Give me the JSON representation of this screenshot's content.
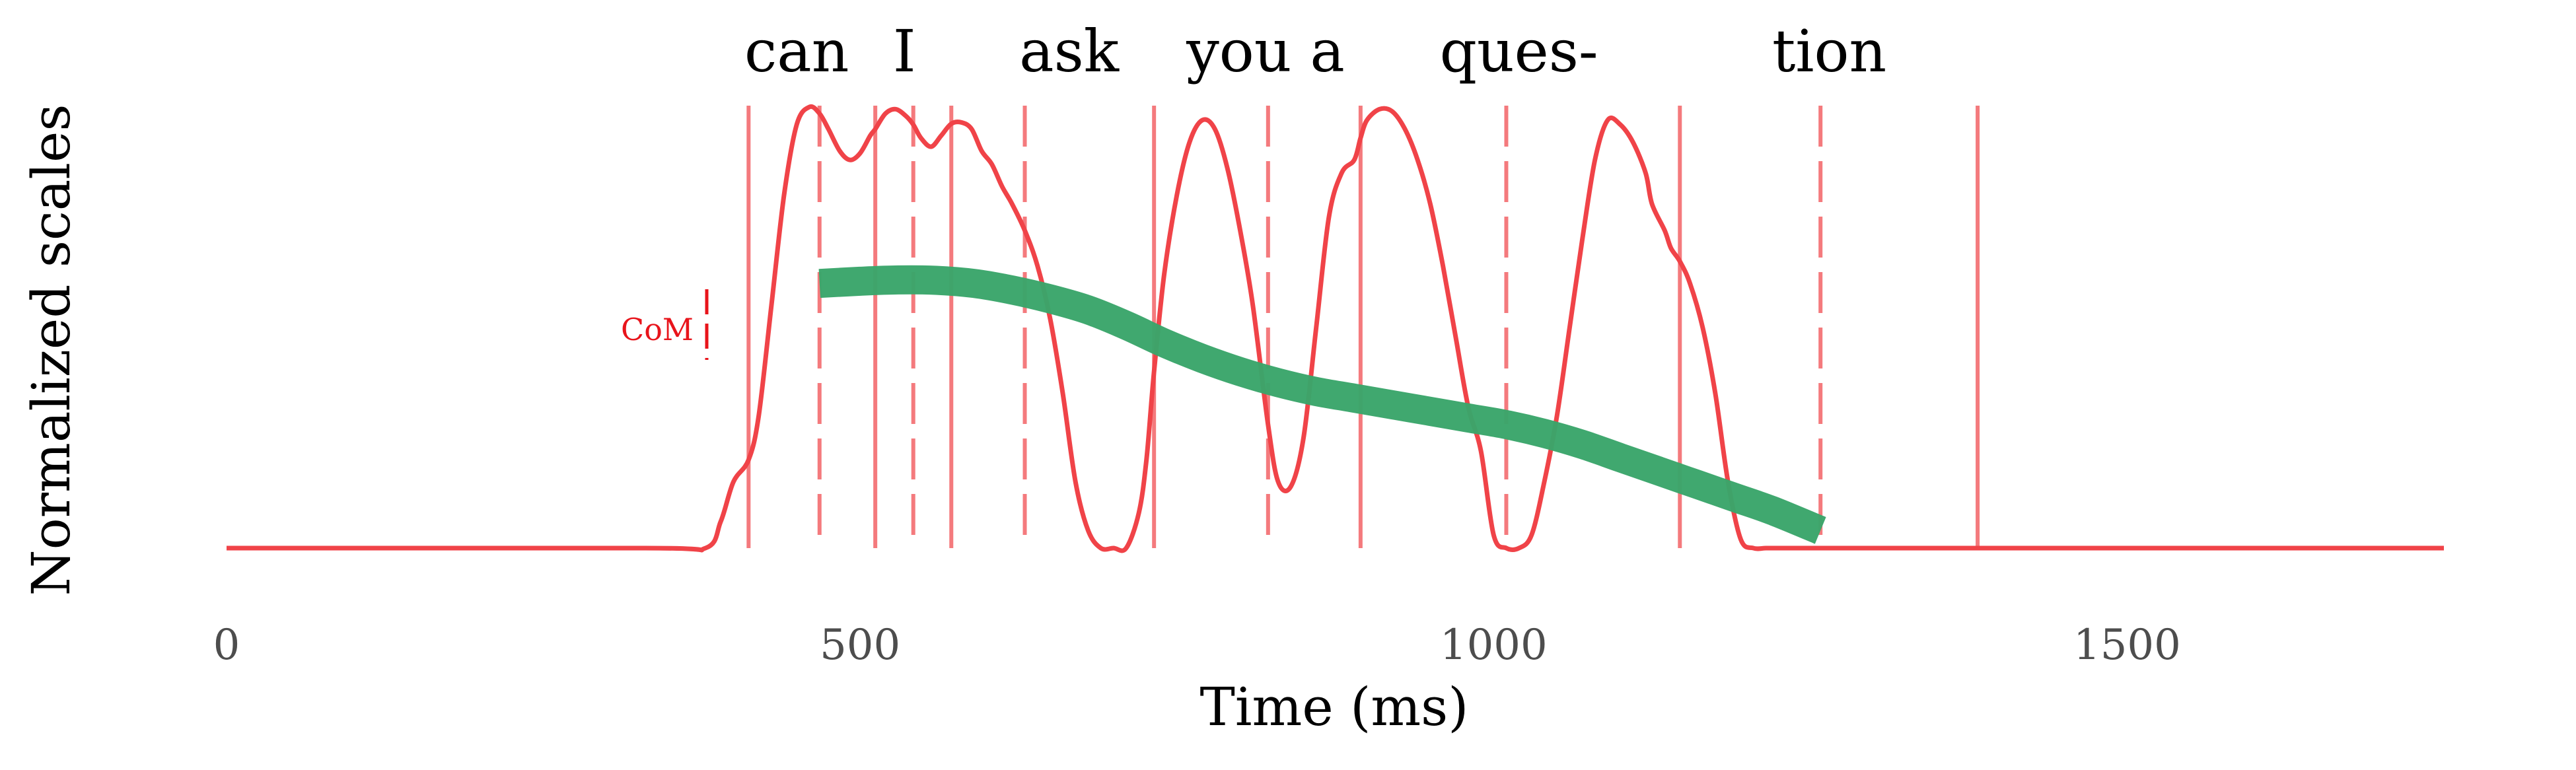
{
  "colors": {
    "envelope": "#f04348",
    "boundary": "#f47a7d",
    "trend": "#3aa56a",
    "com": "#e8141b"
  },
  "chart_data": {
    "type": "line",
    "xlabel": "Time (ms)",
    "ylabel": "Normalized scales",
    "xlim": [
      0,
      1750
    ],
    "x_ticks": [
      0,
      500,
      1000,
      1500
    ],
    "grid": false,
    "legend": "none",
    "words": [
      {
        "label": "can",
        "x": 450
      },
      {
        "label": "I",
        "x": 535
      },
      {
        "label": "ask",
        "x": 665
      },
      {
        "label": "you a",
        "x": 820
      },
      {
        "label": "ques-",
        "x": 1020
      },
      {
        "label": "tion",
        "x": 1265
      }
    ],
    "boundaries_solid": [
      412,
      512,
      572,
      732,
      895,
      1147,
      1382
    ],
    "boundaries_dashed": [
      468,
      542,
      630,
      822,
      1010,
      1258
    ],
    "com_label": "CoM",
    "envelope": {
      "x": [
        0,
        330,
        378,
        390,
        400,
        412,
        420,
        430,
        440,
        450,
        460,
        468,
        475,
        484,
        492,
        500,
        508,
        512,
        520,
        528,
        536,
        542,
        548,
        556,
        564,
        572,
        580,
        588,
        596,
        604,
        612,
        620,
        630,
        640,
        650,
        660,
        670,
        680,
        690,
        700,
        710,
        720,
        726,
        732,
        740,
        750,
        760,
        770,
        780,
        790,
        800,
        810,
        822,
        830,
        840,
        850,
        860,
        870,
        880,
        890,
        895,
        900,
        910,
        920,
        930,
        940,
        950,
        960,
        970,
        980,
        990,
        1000,
        1010,
        1020,
        1030,
        1040,
        1050,
        1060,
        1070,
        1080,
        1090,
        1100,
        1110,
        1120,
        1125,
        1135,
        1140,
        1147,
        1155,
        1165,
        1175,
        1185,
        1195,
        1205,
        1215,
        1225,
        1235,
        1245,
        1258,
        1270,
        1280,
        1290,
        1300,
        1310,
        1320,
        1330,
        1340,
        1350,
        1360,
        1370,
        1375,
        1382,
        1390,
        1750
      ],
      "y": [
        0,
        0,
        0,
        0.06,
        0.15,
        0.2,
        0.3,
        0.55,
        0.8,
        0.96,
        1.0,
        0.985,
        0.95,
        0.9,
        0.88,
        0.895,
        0.935,
        0.95,
        0.985,
        0.995,
        0.98,
        0.96,
        0.93,
        0.91,
        0.935,
        0.962,
        0.965,
        0.95,
        0.9,
        0.87,
        0.82,
        0.78,
        0.72,
        0.64,
        0.52,
        0.35,
        0.15,
        0.04,
        0,
        0,
        0,
        0.08,
        0.2,
        0.4,
        0.62,
        0.8,
        0.92,
        0.97,
        0.95,
        0.86,
        0.72,
        0.55,
        0.28,
        0.15,
        0.14,
        0.25,
        0.5,
        0.75,
        0.85,
        0.88,
        0.93,
        0.97,
        0.995,
        0.99,
        0.95,
        0.88,
        0.78,
        0.64,
        0.48,
        0.32,
        0.22,
        0.03,
        0,
        0,
        0.03,
        0.15,
        0.3,
        0.5,
        0.7,
        0.88,
        0.97,
        0.96,
        0.92,
        0.85,
        0.78,
        0.72,
        0.68,
        0.65,
        0.6,
        0.5,
        0.35,
        0.15,
        0.02,
        0,
        0,
        0,
        0,
        0,
        0,
        0,
        0,
        0,
        0,
        0,
        0,
        0,
        0,
        0,
        0,
        0,
        0,
        0,
        0,
        0
      ]
    },
    "trend": {
      "x": [
        468,
        500,
        530,
        560,
        590,
        620,
        650,
        680,
        710,
        740,
        770,
        800,
        830,
        860,
        890,
        920,
        950,
        980,
        1010,
        1040,
        1070,
        1100,
        1130,
        1160,
        1190,
        1220,
        1258
      ],
      "y": [
        0.6,
        0.605,
        0.608,
        0.607,
        0.6,
        0.585,
        0.565,
        0.54,
        0.505,
        0.465,
        0.43,
        0.4,
        0.375,
        0.355,
        0.34,
        0.325,
        0.31,
        0.295,
        0.28,
        0.26,
        0.235,
        0.205,
        0.175,
        0.145,
        0.115,
        0.085,
        0.04
      ]
    }
  }
}
